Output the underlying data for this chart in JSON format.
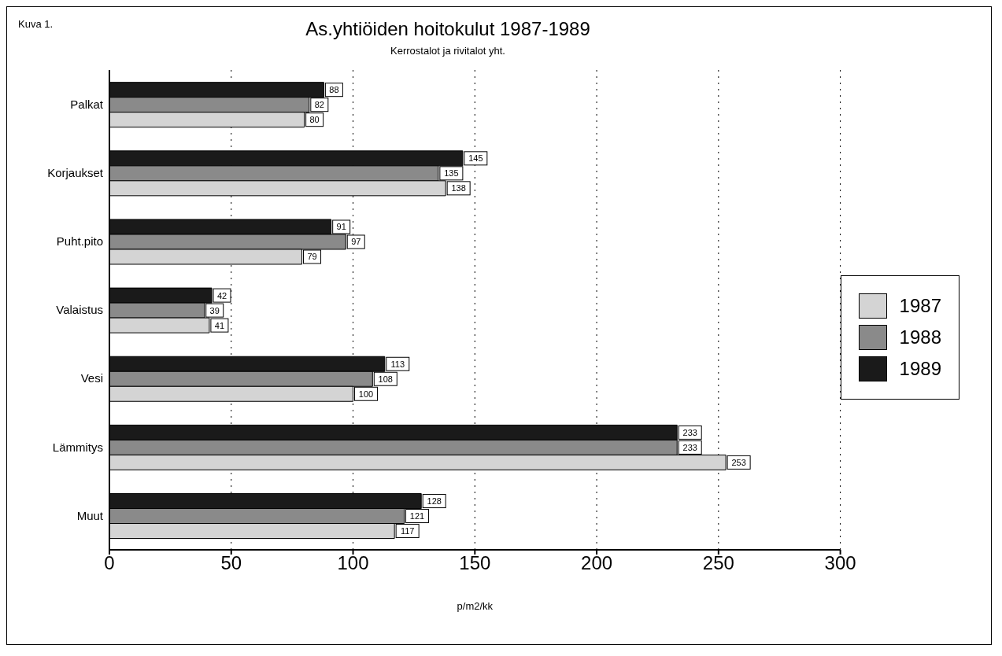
{
  "chart_data": {
    "type": "bar",
    "orientation": "horizontal",
    "title": "As.yhtiöiden hoitokulut 1987-1989",
    "subtitle": "Kerrostalot ja rivitalot yht.",
    "xlabel": "p/m2/kk",
    "annotations": [
      "Kuva 1."
    ],
    "categories": [
      "Palkat",
      "Korjaukset",
      "Puht.pito",
      "Valaistus",
      "Vesi",
      "Lämmitys",
      "Muut"
    ],
    "series": [
      {
        "name": "1987",
        "color": "#d4d4d4",
        "values": [
          80,
          138,
          79,
          41,
          100,
          253,
          117
        ]
      },
      {
        "name": "1988",
        "color": "#8a8a8a",
        "values": [
          82,
          135,
          97,
          39,
          108,
          233,
          121
        ]
      },
      {
        "name": "1989",
        "color": "#1a1a1a",
        "values": [
          88,
          145,
          91,
          42,
          113,
          233,
          128
        ]
      }
    ],
    "xlim": [
      0,
      300
    ],
    "xticks": [
      0,
      50,
      100,
      150,
      200,
      250,
      300
    ],
    "grid": "x",
    "legend": "right",
    "data_labels": true
  }
}
